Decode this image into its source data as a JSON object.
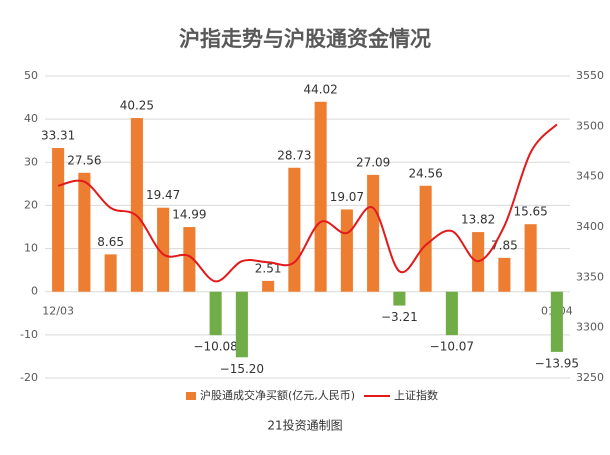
{
  "chart_data": {
    "type": "bar",
    "title": "沪指走势与沪股通资金情况",
    "categories": [
      "12/03",
      null,
      null,
      null,
      null,
      null,
      null,
      null,
      null,
      null,
      null,
      null,
      null,
      null,
      null,
      null,
      null,
      null,
      null,
      "01/04"
    ],
    "series": [
      {
        "name": "沪股通成交净买额(亿元,人民币)",
        "type": "bar",
        "color": "#ed7d31",
        "negative_color": "#70ad47",
        "values": [
          33.31,
          27.56,
          8.65,
          40.25,
          19.47,
          14.99,
          -10.08,
          -15.2,
          2.51,
          28.73,
          44.02,
          19.07,
          27.09,
          -3.21,
          24.56,
          -10.07,
          13.82,
          7.85,
          15.65,
          -13.95
        ],
        "value_labels": [
          "33.31",
          "27.56",
          "8.65",
          "40.25",
          "19.47",
          "14.99",
          "−10.08",
          "−15.20",
          "2.51",
          "28.73",
          "44.02",
          "19.07",
          "27.09",
          "−3.21",
          "24.56",
          "−10.07",
          "13.82",
          "7.85",
          "15.65",
          "−13.95"
        ]
      },
      {
        "name": "上证指数",
        "type": "line",
        "axis": "y2",
        "color": "#e31a1c",
        "values": [
          3441,
          3445,
          3419,
          3411,
          3373,
          3371,
          3346,
          3366,
          3365,
          3365,
          3405,
          3394,
          3419,
          3356,
          3382,
          3396,
          3366,
          3401,
          3474,
          3502
        ]
      }
    ],
    "ylim": [
      -20,
      50
    ],
    "yticks": [
      -20,
      -10,
      0,
      10,
      20,
      30,
      40,
      50
    ],
    "y2lim": [
      3250,
      3550
    ],
    "y2ticks": [
      3250,
      3300,
      3350,
      3400,
      3450,
      3500,
      3550
    ],
    "grid": true,
    "legend": "bottom",
    "footer": "21投资通制图"
  }
}
